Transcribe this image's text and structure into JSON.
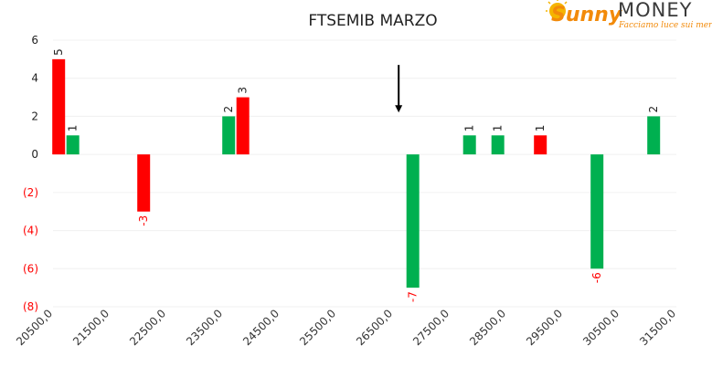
{
  "logo": {
    "brand_word": "Sunny",
    "brand_money": "MONEY",
    "tagline": "Facciamo luce sui mercati",
    "brand_color": "#f39c12",
    "text_color": "#3a3a3a"
  },
  "colors": {
    "green": "#00b050",
    "red": "#ff0000",
    "neg_label": "#ff0000",
    "pos_label": "#222222",
    "grid": "#f0f0f0"
  },
  "chart_data": {
    "type": "bar",
    "title": "FTSEMIB MARZO",
    "xlabel": "",
    "ylabel": "",
    "xlim": [
      20500,
      31500
    ],
    "ylim": [
      -8,
      6
    ],
    "yticks": [
      6,
      4,
      2,
      0,
      -2,
      -4,
      -6,
      -8
    ],
    "ytick_labels": [
      "6",
      "4",
      "2",
      "0",
      "(2)",
      "(4)",
      "(6)",
      "(8)"
    ],
    "xtick_labels": [
      "20500,0",
      "21500,0",
      "22500,0",
      "23500,0",
      "24500,0",
      "25500,0",
      "26500,0",
      "27500,0",
      "28500,0",
      "29500,0",
      "30500,0",
      "31500,0"
    ],
    "grid": "horizontal",
    "bars": [
      {
        "x": 20600,
        "value": 5,
        "label": "5",
        "color": "red"
      },
      {
        "x": 20850,
        "value": 1,
        "label": "1",
        "color": "green"
      },
      {
        "x": 22100,
        "value": -3,
        "label": "-3",
        "color": "red"
      },
      {
        "x": 23600,
        "value": 2,
        "label": "2",
        "color": "green"
      },
      {
        "x": 23850,
        "value": 3,
        "label": "3",
        "color": "red"
      },
      {
        "x": 26850,
        "value": -7,
        "label": "-7",
        "color": "green"
      },
      {
        "x": 27850,
        "value": 1,
        "label": "1",
        "color": "green"
      },
      {
        "x": 28350,
        "value": 1,
        "label": "1",
        "color": "green"
      },
      {
        "x": 29100,
        "value": 1,
        "label": "1",
        "color": "red"
      },
      {
        "x": 30100,
        "value": -6,
        "label": "-6",
        "color": "green"
      },
      {
        "x": 31100,
        "value": 2,
        "label": "2",
        "color": "green"
      }
    ],
    "annotations": [
      {
        "type": "arrow-down",
        "x": 26600,
        "y_from": 4.7,
        "y_to": 2.2
      }
    ]
  }
}
